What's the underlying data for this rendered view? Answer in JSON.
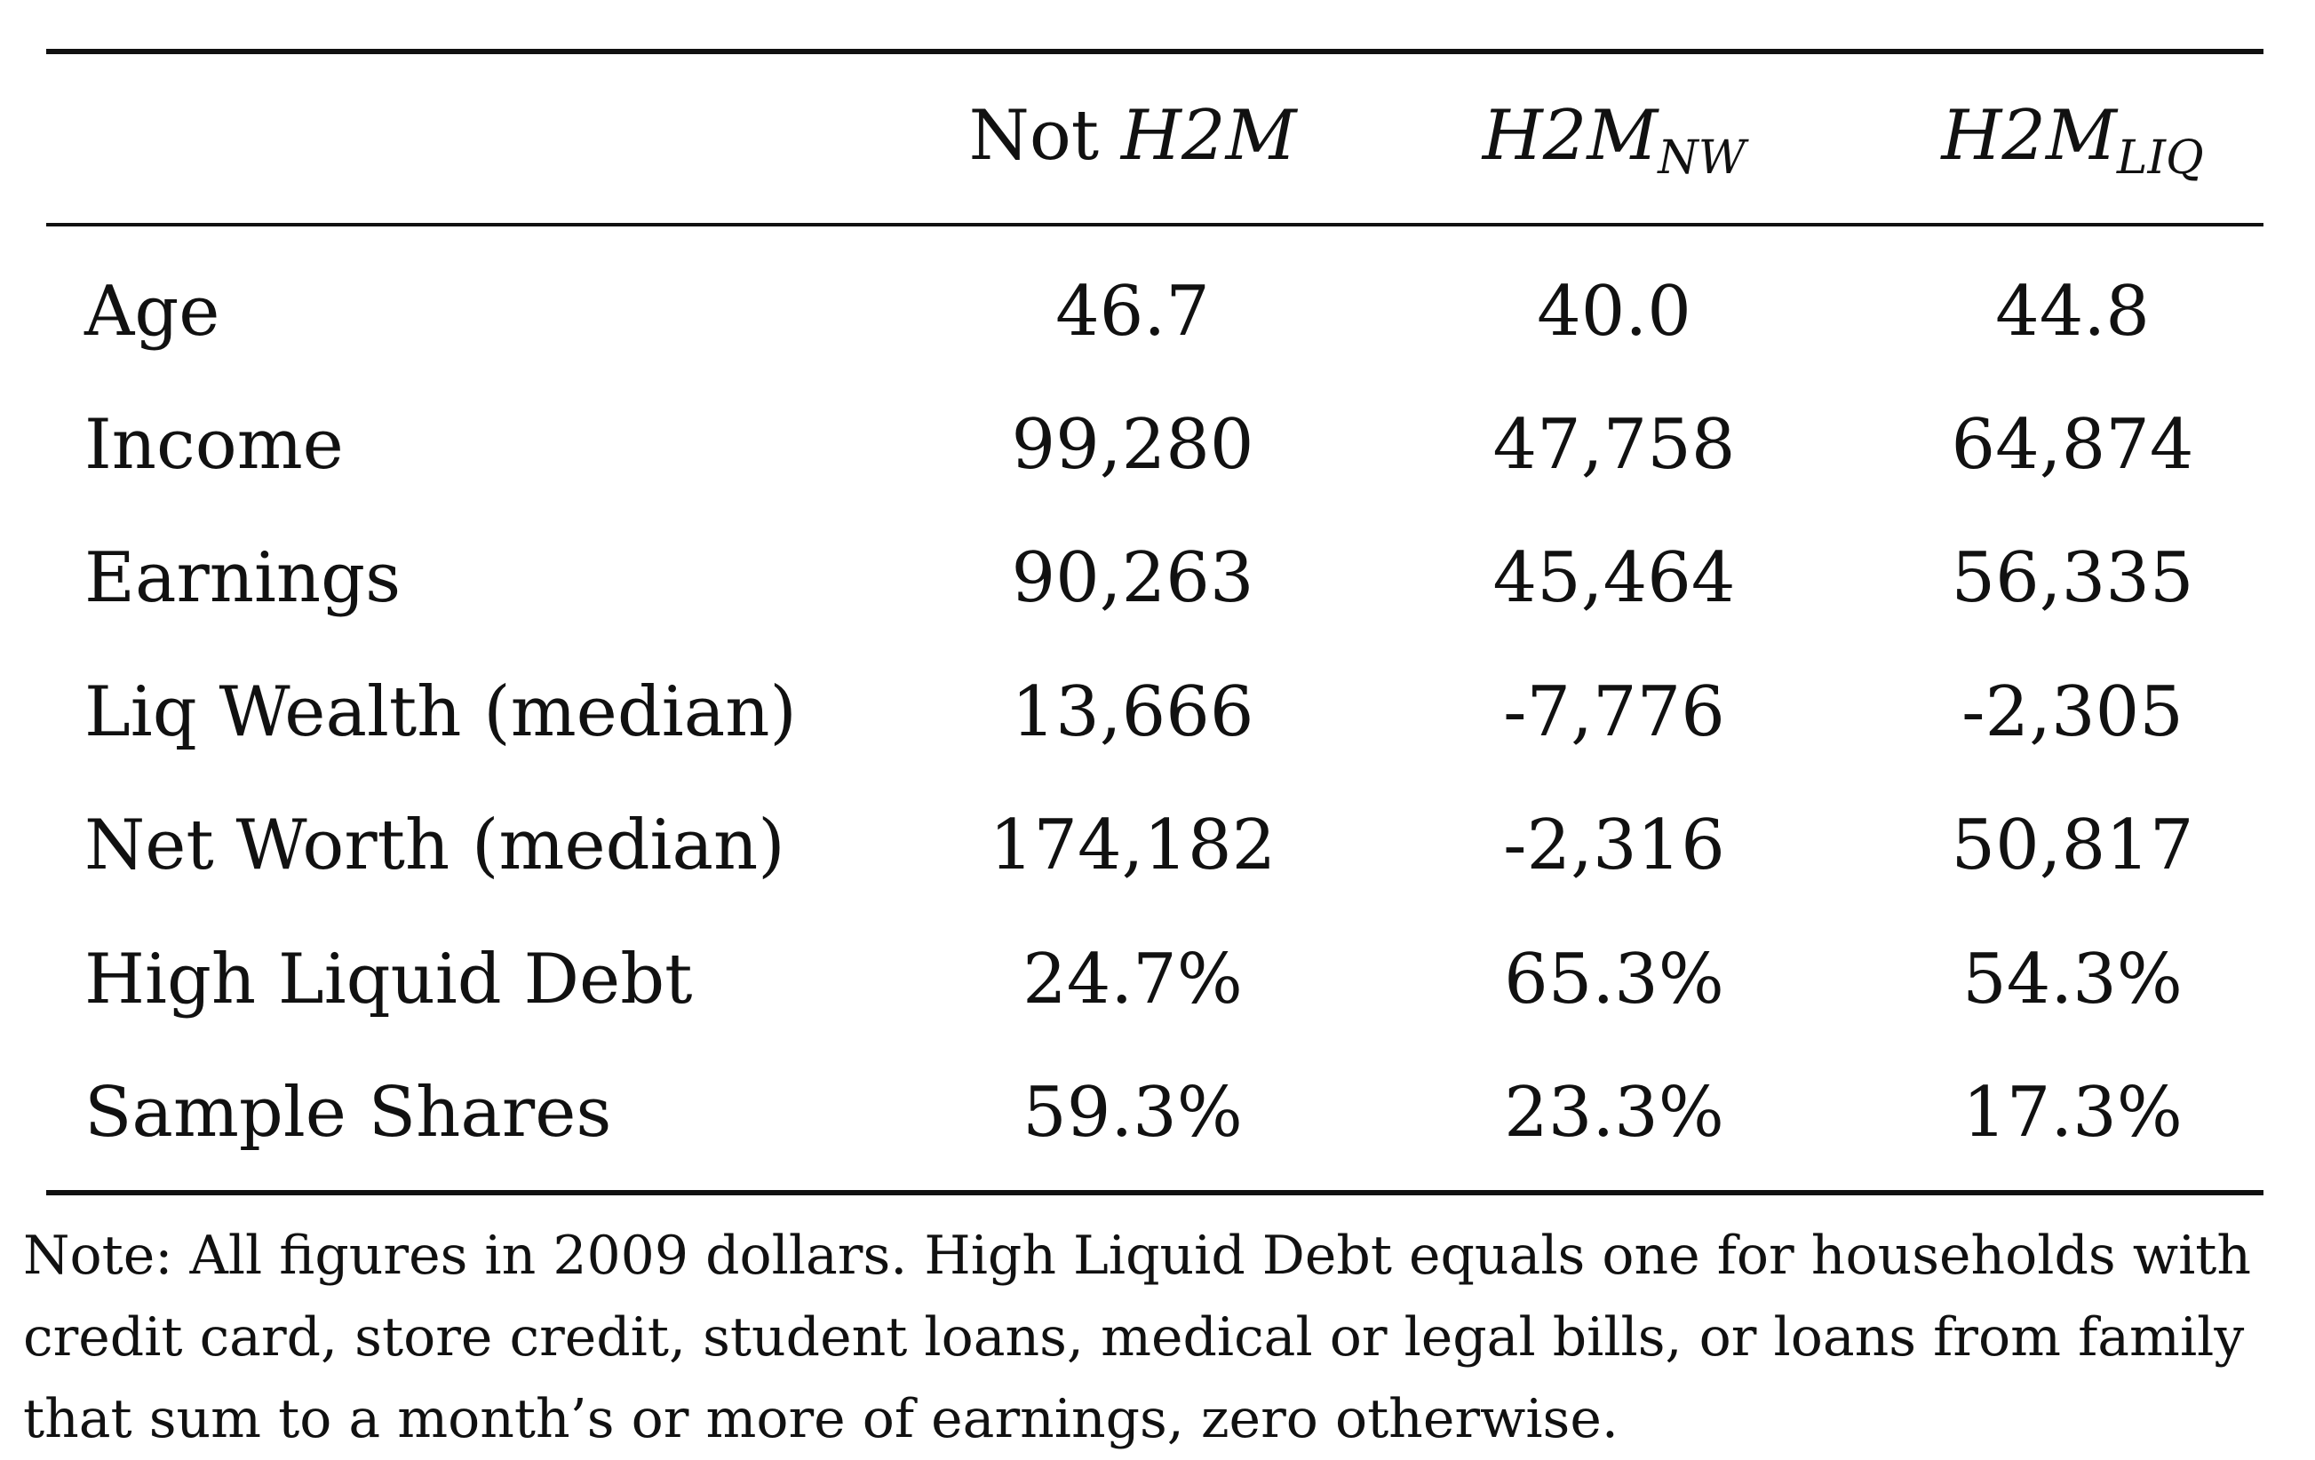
{
  "table": {
    "header": {
      "col1_prefix": "Not",
      "col1_italic": "H2M",
      "col2_base": "H2M",
      "col2_sub": "NW",
      "col3_base": "H2M",
      "col3_sub": "LIQ"
    },
    "rows": [
      {
        "label": "Age",
        "values": [
          "46.7",
          "40.0",
          "44.8"
        ]
      },
      {
        "label": "Income",
        "values": [
          "99,280",
          "47,758",
          "64,874"
        ]
      },
      {
        "label": "Earnings",
        "values": [
          "90,263",
          "45,464",
          "56,335"
        ]
      },
      {
        "label": "Liq Wealth (median)",
        "values": [
          "13,666",
          "-7,776",
          "-2,305"
        ]
      },
      {
        "label": "Net Worth (median)",
        "values": [
          "174,182",
          "-2,316",
          "50,817"
        ]
      },
      {
        "label": "High Liquid Debt",
        "values": [
          "24.7%",
          "65.3%",
          "54.3%"
        ]
      },
      {
        "label": "Sample Shares",
        "values": [
          "59.3%",
          "23.3%",
          "17.3%"
        ]
      }
    ]
  },
  "note": "Note: All figures in 2009 dollars. High Liquid Debt equals one for households with credit card, store credit, student loans, medical or legal bills, or loans from family that sum to a month’s or more of earnings, zero otherwise."
}
